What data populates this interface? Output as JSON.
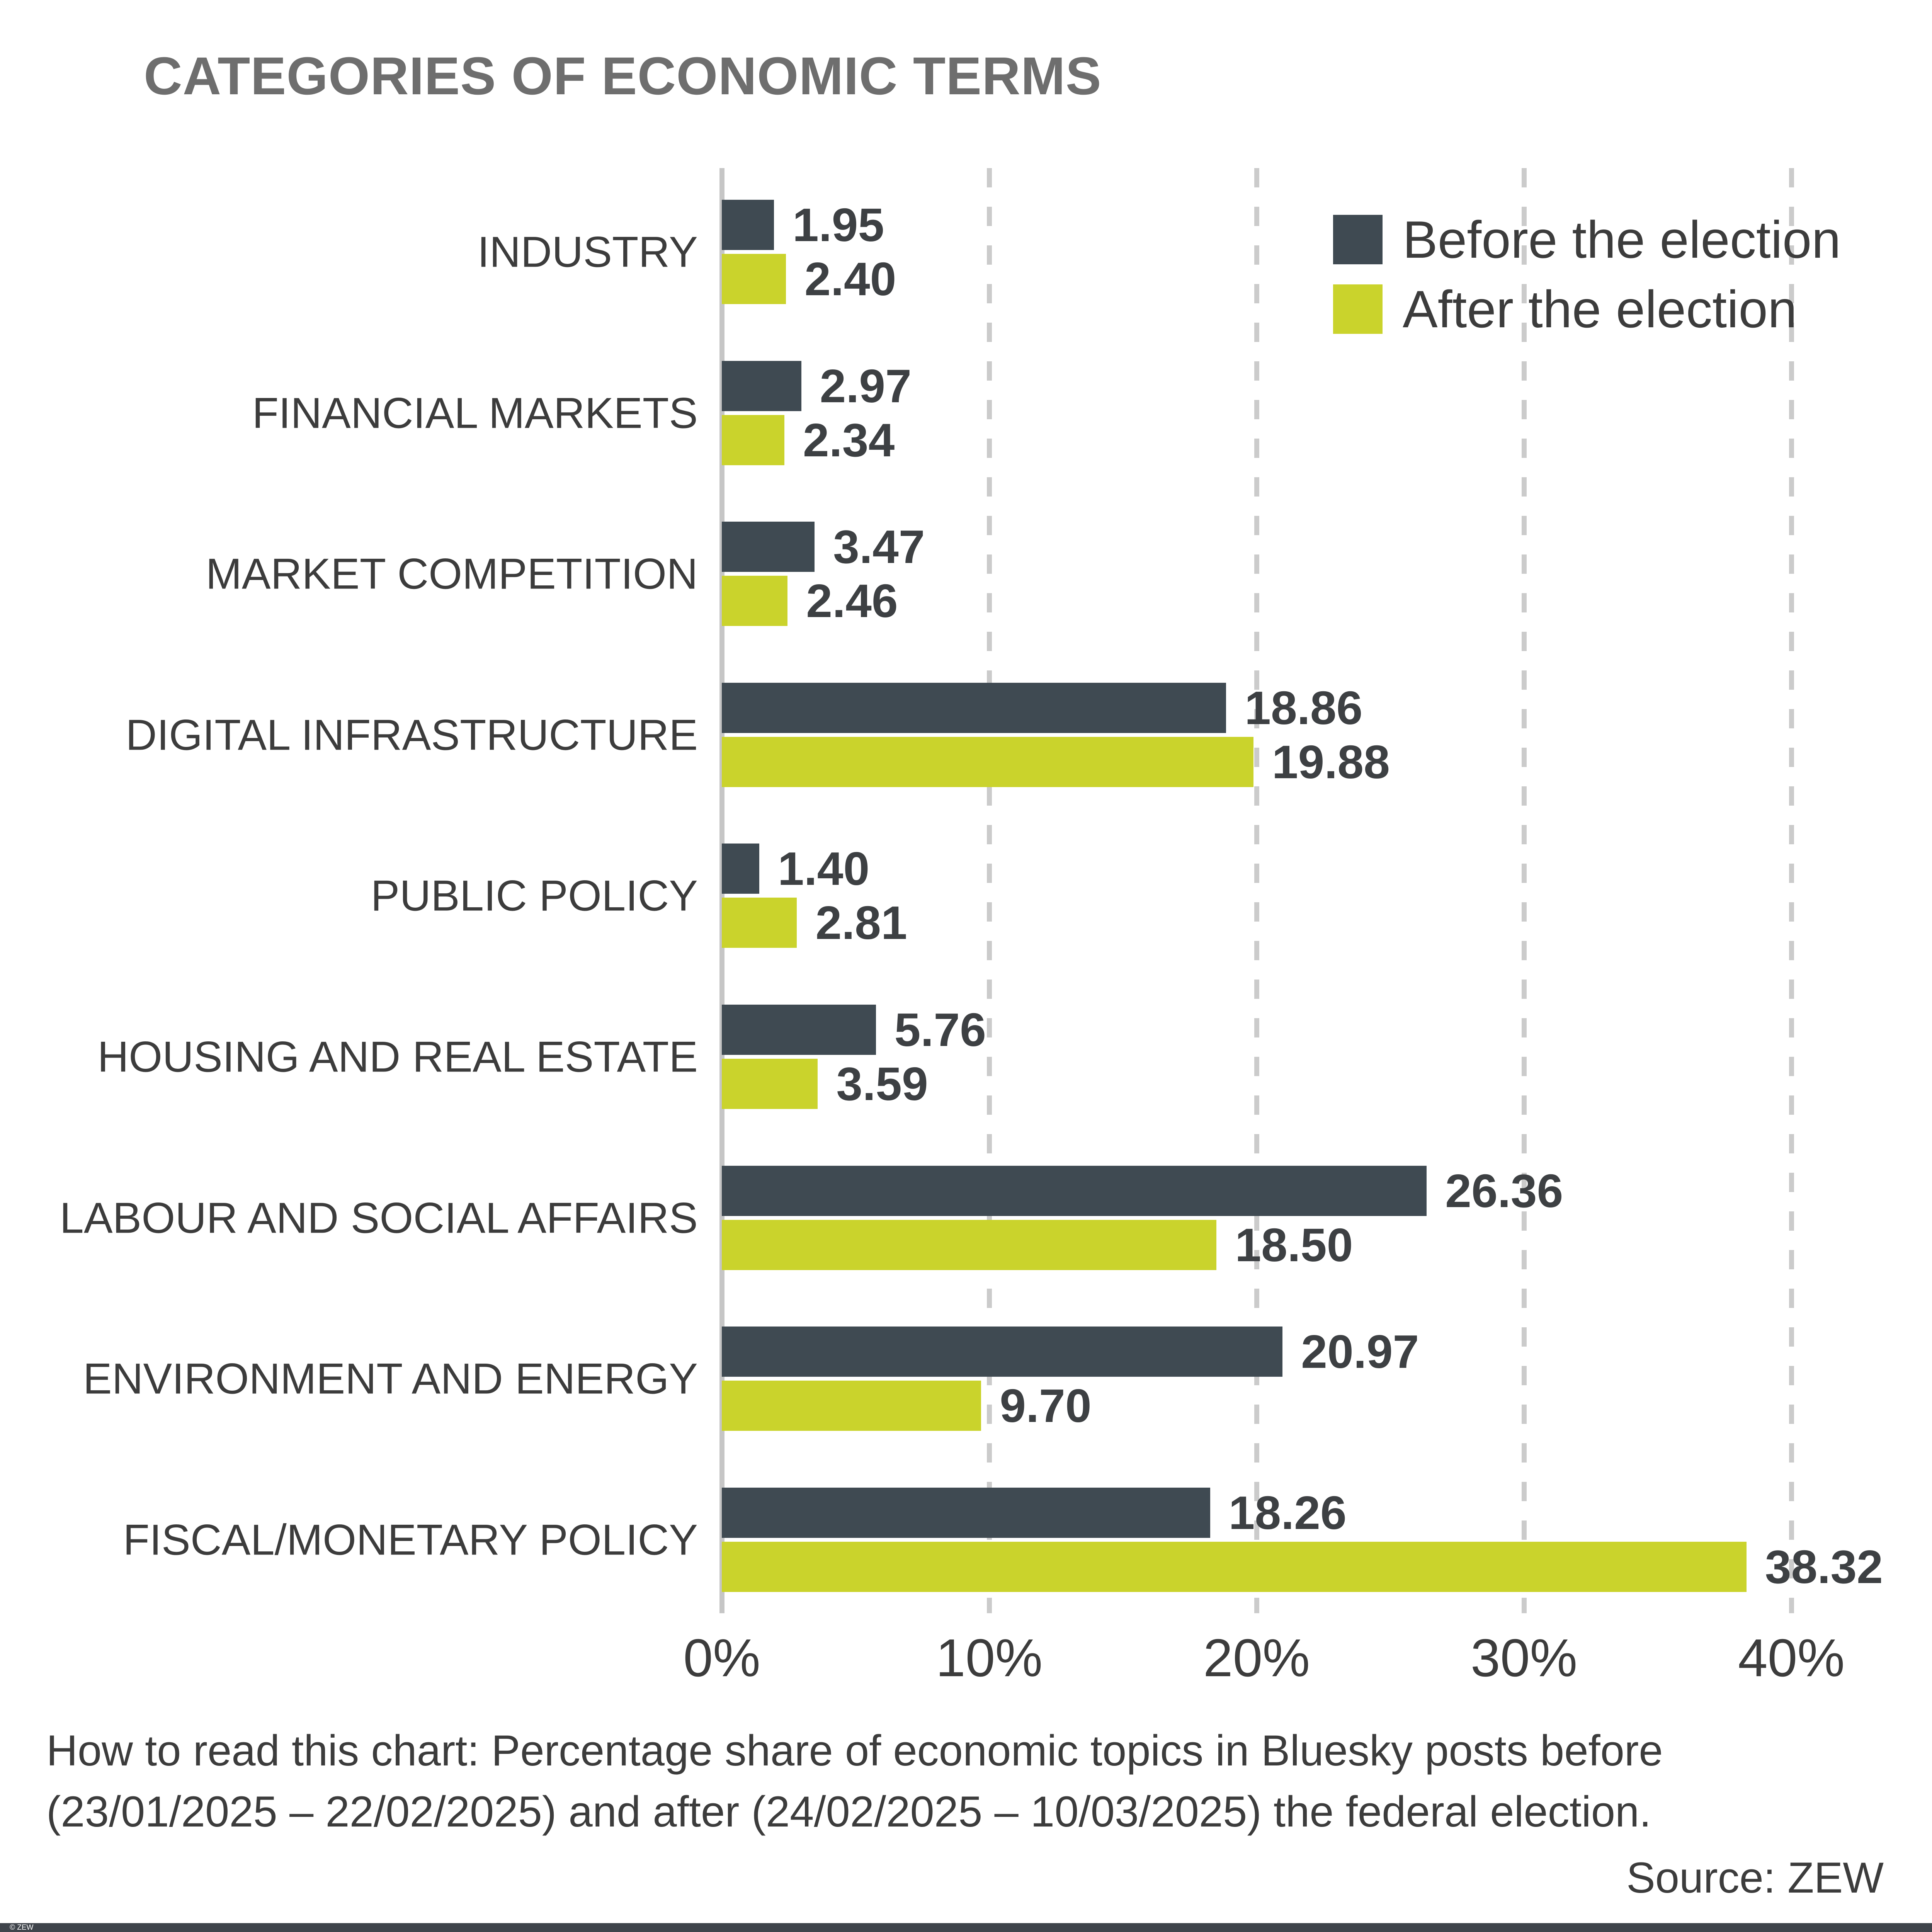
{
  "title": "CATEGORIES OF ECONOMIC TERMS",
  "legend": {
    "before_label": "Before the election",
    "after_label": "After the election"
  },
  "chart_data": {
    "type": "bar",
    "orientation": "horizontal",
    "title": "CATEGORIES OF ECONOMIC TERMS",
    "categories": [
      "INDUSTRY",
      "FINANCIAL MARKETS",
      "MARKET COMPETITION",
      "DIGITAL INFRASTRUCTURE",
      "PUBLIC POLICY",
      "HOUSING AND REAL ESTATE",
      "LABOUR AND SOCIAL AFFAIRS",
      "ENVIRONMENT AND ENERGY",
      "FISCAL/MONETARY POLICY"
    ],
    "series": [
      {
        "name": "Before the election",
        "color": "#3F4A52",
        "values": [
          1.95,
          2.97,
          3.47,
          18.86,
          1.4,
          5.76,
          26.36,
          20.97,
          18.26
        ]
      },
      {
        "name": "After the election",
        "color": "#CAD32C",
        "values": [
          2.4,
          2.34,
          2.46,
          19.88,
          2.81,
          3.59,
          18.5,
          9.7,
          38.32
        ]
      }
    ],
    "xlabel": "",
    "ylabel": "",
    "x_tick_labels": [
      "0%",
      "10%",
      "20%",
      "30%",
      "40%"
    ],
    "x_tick_values": [
      0,
      10,
      20,
      30,
      40
    ],
    "xlim": [
      0,
      44.5
    ],
    "grid": "vertical dashed",
    "legend_position": "top-right",
    "value_labels_decimals": 2
  },
  "footer": {
    "line1": "How to read this chart: Percentage share of economic topics in Bluesky posts before",
    "line2": "(23/01/2025 – 22/02/2025) and after (24/02/2025 – 10/03/2025) the federal election.",
    "source": "Source: ZEW"
  },
  "copyright": "© ZEW",
  "colors": {
    "before": "#3F4A52",
    "after": "#CAD32C",
    "title_text": "#6E6E6E",
    "text": "#3C3C3C",
    "value_text": "#3D4043",
    "grid": "#CBCBCB",
    "axis": "#C6C6C6",
    "footer_bar_bg": "#3F444B",
    "footer_bar_text": "#FFFFFF",
    "background": "#FFFFFF"
  }
}
